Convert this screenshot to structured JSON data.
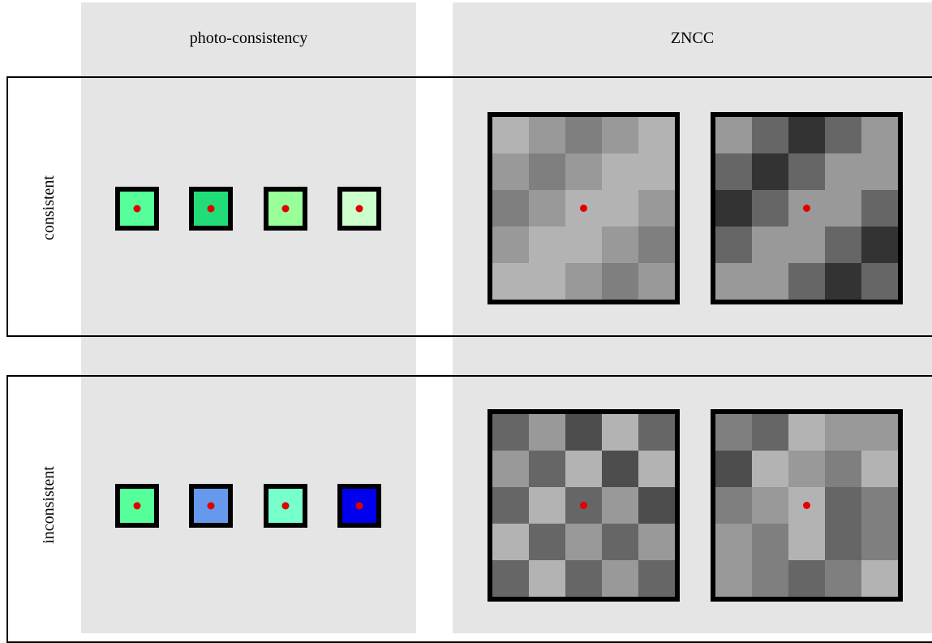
{
  "headers": {
    "photo": "photo-consistency",
    "zncc": "ZNCC"
  },
  "rows": [
    {
      "label": "consistent",
      "swatches": [
        "#55ff99",
        "#22dd77",
        "#99ff99",
        "#ccffcc"
      ],
      "grids": [
        [
          "#b3b3b3",
          "#999999",
          "#7f7f7f",
          "#999999",
          "#b3b3b3",
          "#999999",
          "#7f7f7f",
          "#999999",
          "#b3b3b3",
          "#b3b3b3",
          "#7f7f7f",
          "#999999",
          "#b3b3b3",
          "#b3b3b3",
          "#999999",
          "#999999",
          "#b3b3b3",
          "#b3b3b3",
          "#999999",
          "#7f7f7f",
          "#b3b3b3",
          "#b3b3b3",
          "#999999",
          "#7f7f7f",
          "#999999"
        ],
        [
          "#999999",
          "#666666",
          "#333333",
          "#666666",
          "#999999",
          "#666666",
          "#333333",
          "#666666",
          "#999999",
          "#999999",
          "#333333",
          "#666666",
          "#999999",
          "#999999",
          "#666666",
          "#666666",
          "#999999",
          "#999999",
          "#666666",
          "#333333",
          "#999999",
          "#999999",
          "#666666",
          "#333333",
          "#666666"
        ]
      ]
    },
    {
      "label": "inconsistent",
      "swatches": [
        "#55ff99",
        "#6699ee",
        "#77ffcc",
        "#0000ee"
      ],
      "grids": [
        [
          "#666666",
          "#999999",
          "#4d4d4d",
          "#b3b3b3",
          "#666666",
          "#999999",
          "#666666",
          "#b3b3b3",
          "#4d4d4d",
          "#b3b3b3",
          "#666666",
          "#b3b3b3",
          "#666666",
          "#999999",
          "#4d4d4d",
          "#b3b3b3",
          "#666666",
          "#999999",
          "#666666",
          "#999999",
          "#666666",
          "#b3b3b3",
          "#666666",
          "#999999",
          "#666666"
        ],
        [
          "#7f7f7f",
          "#666666",
          "#b3b3b3",
          "#999999",
          "#999999",
          "#4d4d4d",
          "#b3b3b3",
          "#999999",
          "#7f7f7f",
          "#b3b3b3",
          "#7f7f7f",
          "#999999",
          "#b3b3b3",
          "#666666",
          "#7f7f7f",
          "#999999",
          "#7f7f7f",
          "#b3b3b3",
          "#666666",
          "#7f7f7f",
          "#999999",
          "#7f7f7f",
          "#666666",
          "#7f7f7f",
          "#b3b3b3"
        ]
      ]
    }
  ]
}
